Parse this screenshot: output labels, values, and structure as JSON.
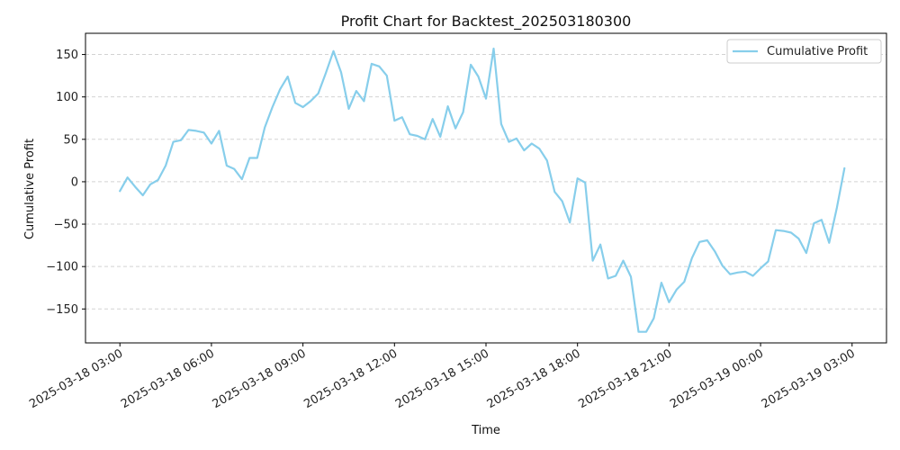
{
  "chart_data": {
    "type": "line",
    "title": "Profit Chart for Backtest_202503180300",
    "xlabel": "Time",
    "ylabel": "Cumulative Profit",
    "x_axis": {
      "type": "datetime",
      "ticks": [
        "2025-03-18 03:00",
        "2025-03-18 06:00",
        "2025-03-18 09:00",
        "2025-03-18 12:00",
        "2025-03-18 15:00",
        "2025-03-18 18:00",
        "2025-03-18 21:00",
        "2025-03-19 00:00",
        "2025-03-19 03:00"
      ]
    },
    "y_axis": {
      "ticks": [
        -150,
        -100,
        -50,
        0,
        50,
        100,
        150
      ],
      "ylim": [
        -190,
        175
      ]
    },
    "grid": {
      "y": true,
      "style": "dashed"
    },
    "legend": {
      "position": "top-right"
    },
    "series": [
      {
        "name": "Cumulative Profit",
        "color": "#87ceeb",
        "x": [
          "2025-03-18 03:00",
          "2025-03-18 03:15",
          "2025-03-18 03:30",
          "2025-03-18 03:45",
          "2025-03-18 04:00",
          "2025-03-18 04:15",
          "2025-03-18 04:30",
          "2025-03-18 04:45",
          "2025-03-18 05:00",
          "2025-03-18 05:15",
          "2025-03-18 05:30",
          "2025-03-18 05:45",
          "2025-03-18 06:00",
          "2025-03-18 06:15",
          "2025-03-18 06:30",
          "2025-03-18 06:45",
          "2025-03-18 07:00",
          "2025-03-18 07:15",
          "2025-03-18 07:30",
          "2025-03-18 07:45",
          "2025-03-18 08:00",
          "2025-03-18 08:15",
          "2025-03-18 08:30",
          "2025-03-18 08:45",
          "2025-03-18 09:00",
          "2025-03-18 09:15",
          "2025-03-18 09:30",
          "2025-03-18 09:45",
          "2025-03-18 10:00",
          "2025-03-18 10:15",
          "2025-03-18 10:30",
          "2025-03-18 10:45",
          "2025-03-18 11:00",
          "2025-03-18 11:15",
          "2025-03-18 11:30",
          "2025-03-18 11:45",
          "2025-03-18 12:00",
          "2025-03-18 12:15",
          "2025-03-18 12:30",
          "2025-03-18 12:45",
          "2025-03-18 13:00",
          "2025-03-18 13:15",
          "2025-03-18 13:30",
          "2025-03-18 13:45",
          "2025-03-18 14:00",
          "2025-03-18 14:15",
          "2025-03-18 14:30",
          "2025-03-18 14:45",
          "2025-03-18 15:00",
          "2025-03-18 15:15",
          "2025-03-18 15:30",
          "2025-03-18 15:45",
          "2025-03-18 16:00",
          "2025-03-18 16:15",
          "2025-03-18 16:30",
          "2025-03-18 16:45",
          "2025-03-18 17:00",
          "2025-03-18 17:15",
          "2025-03-18 17:30",
          "2025-03-18 17:45",
          "2025-03-18 18:00",
          "2025-03-18 18:15",
          "2025-03-18 18:30",
          "2025-03-18 18:45",
          "2025-03-18 19:00",
          "2025-03-18 19:15",
          "2025-03-18 19:30",
          "2025-03-18 19:45",
          "2025-03-18 20:00",
          "2025-03-18 20:15",
          "2025-03-18 20:30",
          "2025-03-18 20:45",
          "2025-03-18 21:00",
          "2025-03-18 21:15",
          "2025-03-18 21:30",
          "2025-03-18 21:45",
          "2025-03-18 22:00",
          "2025-03-18 22:15",
          "2025-03-18 22:30",
          "2025-03-18 22:45",
          "2025-03-18 23:00",
          "2025-03-18 23:15",
          "2025-03-18 23:30",
          "2025-03-18 23:45",
          "2025-03-19 00:00",
          "2025-03-19 00:15",
          "2025-03-19 00:30",
          "2025-03-19 00:45",
          "2025-03-19 01:00",
          "2025-03-19 01:15",
          "2025-03-19 01:30",
          "2025-03-19 01:45",
          "2025-03-19 02:00",
          "2025-03-19 02:15",
          "2025-03-19 02:30",
          "2025-03-19 02:45"
        ],
        "values": [
          -11,
          5,
          -6,
          -16,
          -3,
          2,
          19,
          47,
          49,
          61,
          60,
          58,
          45,
          60,
          19,
          15,
          3,
          28,
          28,
          64,
          88,
          109,
          124,
          93,
          88,
          95,
          104,
          128,
          154,
          129,
          86,
          107,
          95,
          139,
          136,
          125,
          72,
          76,
          56,
          54,
          50,
          74,
          53,
          89,
          63,
          82,
          138,
          124,
          98,
          157,
          68,
          47,
          51,
          37,
          45,
          39,
          25,
          -12,
          -23,
          -48,
          4,
          -1,
          -93,
          -74,
          -114,
          -111,
          -93,
          -112,
          -177,
          -177,
          -161,
          -119,
          -142,
          -127,
          -118,
          -90,
          -71,
          -69,
          -82,
          -99,
          -109,
          -107,
          -106,
          -111,
          -102,
          -94,
          -57,
          -58,
          -60,
          -67,
          -84,
          -49,
          -45,
          -72,
          -31,
          16
        ]
      }
    ]
  }
}
